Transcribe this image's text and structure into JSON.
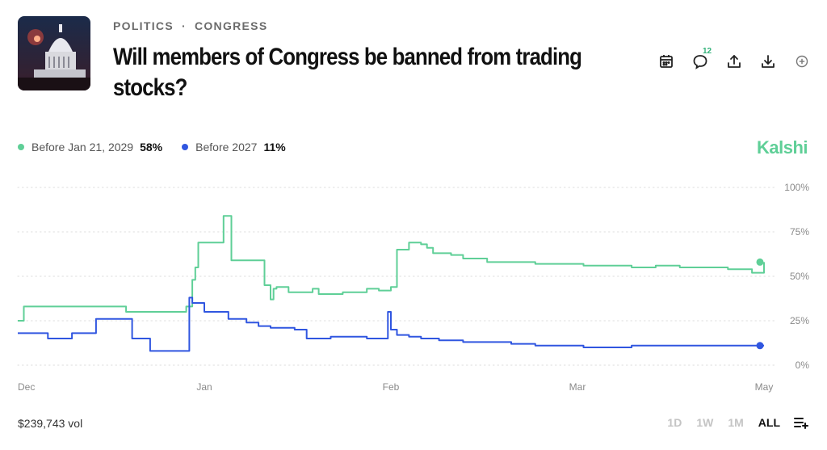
{
  "breadcrumb": {
    "category": "POLITICS",
    "separator": "·",
    "subcategory": "CONGRESS"
  },
  "title": "Will members of Congress be banned from trading stocks?",
  "actions": {
    "comments_count": "12"
  },
  "legend": [
    {
      "label": "Before Jan 21, 2029",
      "value": "58%",
      "color": "#5fcf97"
    },
    {
      "label": "Before 2027",
      "value": "11%",
      "color": "#3056e0"
    }
  ],
  "brand": "Kalshi",
  "volume": "$239,743 vol",
  "ranges": [
    "1D",
    "1W",
    "1M",
    "ALL"
  ],
  "active_range": "ALL",
  "chart_data": {
    "type": "line",
    "y_tick_labels": [
      "100%",
      "75%",
      "50%",
      "25%",
      "0%"
    ],
    "y_ticks": [
      100,
      75,
      50,
      25,
      0
    ],
    "ylim": [
      0,
      100
    ],
    "x_tick_labels": [
      "Dec",
      "Jan",
      "Feb",
      "Mar",
      "May"
    ],
    "x_ticks": [
      0,
      31,
      62,
      93,
      124
    ],
    "xlim": [
      0,
      124
    ],
    "grid": "horizontal dotted",
    "legend_placement": "top-left",
    "series": [
      {
        "name": "Before Jan 21, 2029",
        "color": "#5fcf97",
        "x": [
          0,
          1,
          17,
          18,
          27,
          28,
          29,
          29.5,
          30,
          31,
          34,
          34.2,
          35.5,
          40,
          41,
          42,
          42.5,
          43,
          45,
          47,
          49,
          50,
          52,
          54,
          56,
          58,
          60,
          61.5,
          62,
          63,
          65,
          67,
          68,
          69,
          70,
          72,
          74,
          78,
          82,
          86,
          90,
          94,
          98,
          102,
          106,
          110,
          114,
          118,
          122,
          124
        ],
        "y": [
          25,
          33,
          33,
          30,
          30,
          33,
          48,
          55,
          69,
          69,
          69,
          84,
          59,
          59,
          45,
          37,
          43,
          44,
          41,
          41,
          43,
          40,
          40,
          41,
          41,
          43,
          42,
          42,
          44,
          65,
          69,
          68,
          66,
          63,
          63,
          62,
          60,
          58,
          58,
          57,
          57,
          56,
          56,
          55,
          56,
          55,
          55,
          54,
          52,
          58
        ]
      },
      {
        "name": "Before 2027",
        "color": "#3056e0",
        "x": [
          0,
          3,
          5,
          9,
          10,
          13,
          18,
          19,
          21,
          22,
          24,
          27,
          28,
          28.5,
          29,
          31,
          35,
          38,
          40,
          42,
          46,
          48,
          52,
          56,
          58,
          60,
          61,
          61.5,
          62,
          63,
          65,
          67,
          70,
          74,
          78,
          82,
          86,
          90,
          94,
          98,
          102,
          106,
          110,
          114,
          118,
          122,
          124
        ],
        "y": [
          18,
          18,
          15,
          18,
          18,
          26,
          26,
          15,
          15,
          8,
          8,
          8,
          8,
          38,
          35,
          30,
          26,
          24,
          22,
          21,
          20,
          15,
          16,
          16,
          15,
          15,
          15,
          30,
          20,
          17,
          16,
          15,
          14,
          13,
          13,
          12,
          11,
          11,
          10,
          10,
          11,
          11,
          11,
          11,
          11,
          11,
          11
        ]
      }
    ]
  }
}
